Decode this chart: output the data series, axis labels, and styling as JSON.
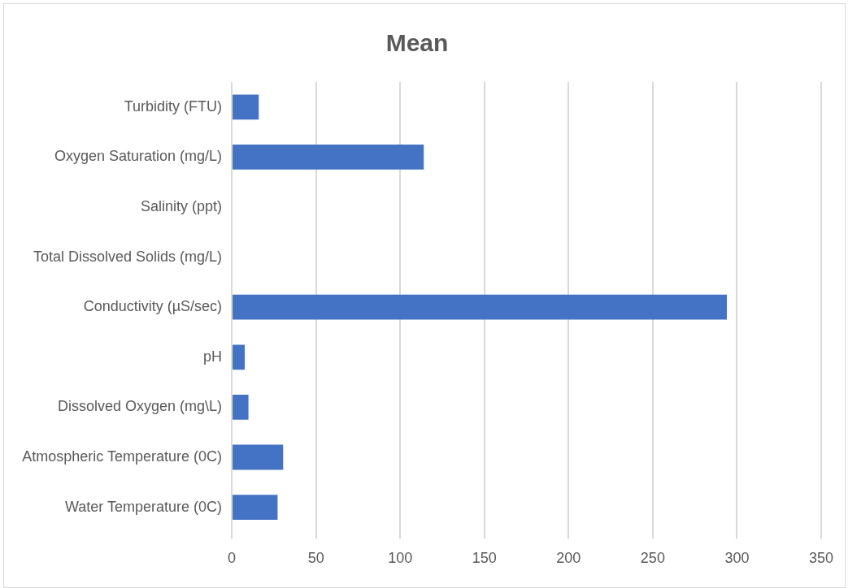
{
  "chart_data": {
    "type": "bar",
    "orientation": "horizontal",
    "title": "Mean",
    "categories": [
      "Turbidity (FTU)",
      "Oxygen Saturation (mg/L)",
      "Salinity (ppt)",
      "Total Dissolved Solids (mg/L)",
      "Conductivity (µS/sec)",
      "pH",
      "Dissolved Oxygen (mg\\L)",
      "Atmospheric Temperature (0C)",
      "Water Temperature (0C)"
    ],
    "values": [
      16,
      114,
      0,
      0,
      294,
      7.7,
      9.9,
      30.5,
      27.2
    ],
    "color": "#4472c4",
    "xlim": [
      0,
      350
    ],
    "xticks": [
      0,
      50,
      100,
      150,
      200,
      250,
      300,
      350
    ],
    "grid": "x",
    "legend": false
  }
}
